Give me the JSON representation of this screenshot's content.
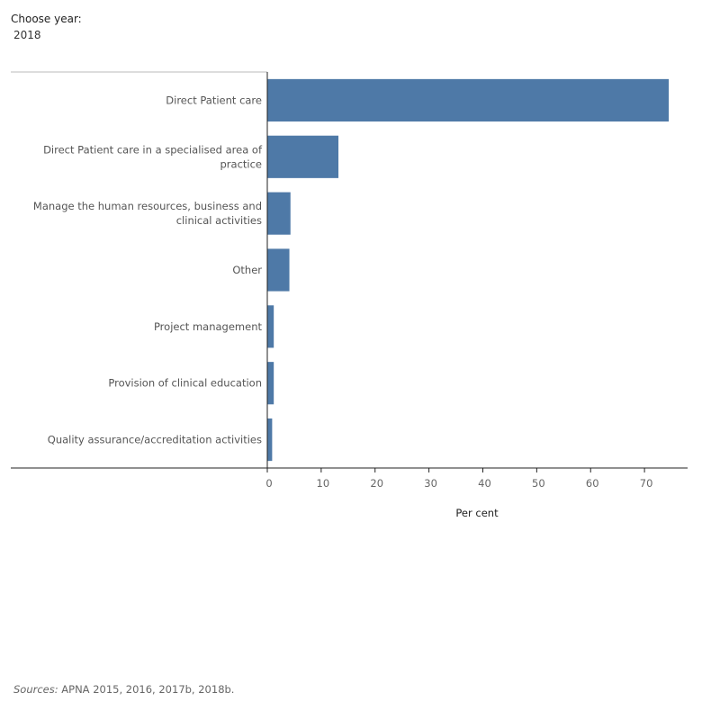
{
  "filter": {
    "label": "Choose year:",
    "selected": "2018"
  },
  "chart_data": {
    "type": "bar",
    "orientation": "horizontal",
    "categories": [
      [
        "Direct Patient care"
      ],
      [
        "Direct Patient care in a specialised area of",
        "practice"
      ],
      [
        "Manage the human resources, business and",
        "clinical activities"
      ],
      [
        "Other"
      ],
      [
        "Project management"
      ],
      [
        "Provision of clinical education"
      ],
      [
        "Quality assurance/accreditation activities"
      ]
    ],
    "values": [
      74.5,
      13.2,
      4.3,
      4.1,
      1.2,
      1.2,
      0.9
    ],
    "xlabel": "Per cent",
    "xticks": [
      0,
      10,
      20,
      30,
      40,
      50,
      60,
      70
    ],
    "xlim": [
      0,
      78
    ],
    "bar_color": "#4e79a7",
    "grid": false
  },
  "sources": {
    "label": "Sources:",
    "text": " APNA 2015, 2016, 2017b, 2018b."
  }
}
